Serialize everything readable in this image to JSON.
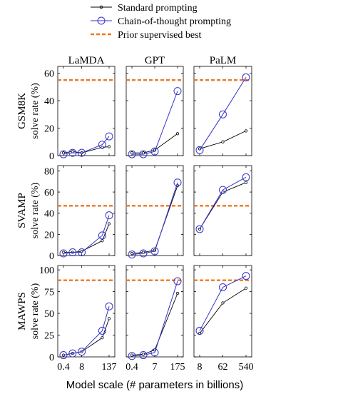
{
  "chart_data": {
    "type": "line",
    "legend": {
      "placement": "top-center",
      "entries": [
        {
          "label": "Standard prompting",
          "color": "#000000",
          "marker": "small-dot"
        },
        {
          "label": "Chain-of-thought prompting",
          "color": "#3333cc",
          "marker": "open-circle"
        },
        {
          "label": "Prior supervised best",
          "color": "#ee7722",
          "marker": "dashed-line"
        }
      ]
    },
    "xlabel": "Model scale (# parameters in billions)",
    "columns": [
      {
        "title": "LaMDA",
        "x_ticks": [
          "0.4",
          "8",
          "137"
        ],
        "x": [
          0.4,
          2,
          8,
          68,
          137
        ]
      },
      {
        "title": "GPT",
        "x_ticks": [
          "0.4",
          "7",
          "175"
        ],
        "x": [
          0.4,
          1.3,
          7,
          175
        ]
      },
      {
        "title": "PaLM",
        "x_ticks": [
          "8",
          "62",
          "540"
        ],
        "x": [
          8,
          62,
          540
        ]
      }
    ],
    "rows": [
      {
        "dataset": "GSM8K",
        "ylabel": "solve rate (%)",
        "ylim": [
          0,
          65
        ],
        "y_ticks": [
          "0",
          "20",
          "40",
          "60"
        ],
        "prior_best": 55,
        "panels": {
          "LaMDA": {
            "standard": [
              2,
              3,
              2,
              6,
              6.5
            ],
            "cot": [
              1,
              2,
              2,
              8,
              14
            ]
          },
          "GPT": {
            "standard": [
              2,
              2,
              4,
              16
            ],
            "cot": [
              1,
              1,
              3,
              47
            ]
          },
          "PaLM": {
            "standard": [
              5,
              10,
              18
            ],
            "cot": [
              4,
              30,
              57
            ]
          }
        }
      },
      {
        "dataset": "SVAMP",
        "ylabel": "solve rate (%)",
        "ylim": [
          0,
          85
        ],
        "y_ticks": [
          "0",
          "20",
          "40",
          "60",
          "80"
        ],
        "prior_best": 47,
        "panels": {
          "LaMDA": {
            "standard": [
              3,
              3,
              4,
              14,
              30
            ],
            "cot": [
              2,
              3,
              3,
              19,
              38
            ]
          },
          "GPT": {
            "standard": [
              2,
              3,
              5,
              66
            ],
            "cot": [
              1,
              2,
              4,
              69
            ]
          },
          "PaLM": {
            "standard": [
              25,
              60,
              69
            ],
            "cot": [
              25,
              62,
              74
            ]
          }
        }
      },
      {
        "dataset": "MAWPS",
        "ylabel": "solve rate (%)",
        "ylim": [
          0,
          105
        ],
        "y_ticks": [
          "0",
          "25",
          "50",
          "75",
          "100"
        ],
        "prior_best": 88,
        "panels": {
          "LaMDA": {
            "standard": [
              2,
              4,
              6,
              22,
              44
            ],
            "cot": [
              2,
              4,
              6,
              30,
              58
            ]
          },
          "GPT": {
            "standard": [
              2,
              3,
              8,
              73
            ],
            "cot": [
              1,
              2,
              5,
              87
            ]
          },
          "PaLM": {
            "standard": [
              27,
              62,
              79
            ],
            "cot": [
              30,
              80,
              93
            ]
          }
        }
      }
    ]
  }
}
